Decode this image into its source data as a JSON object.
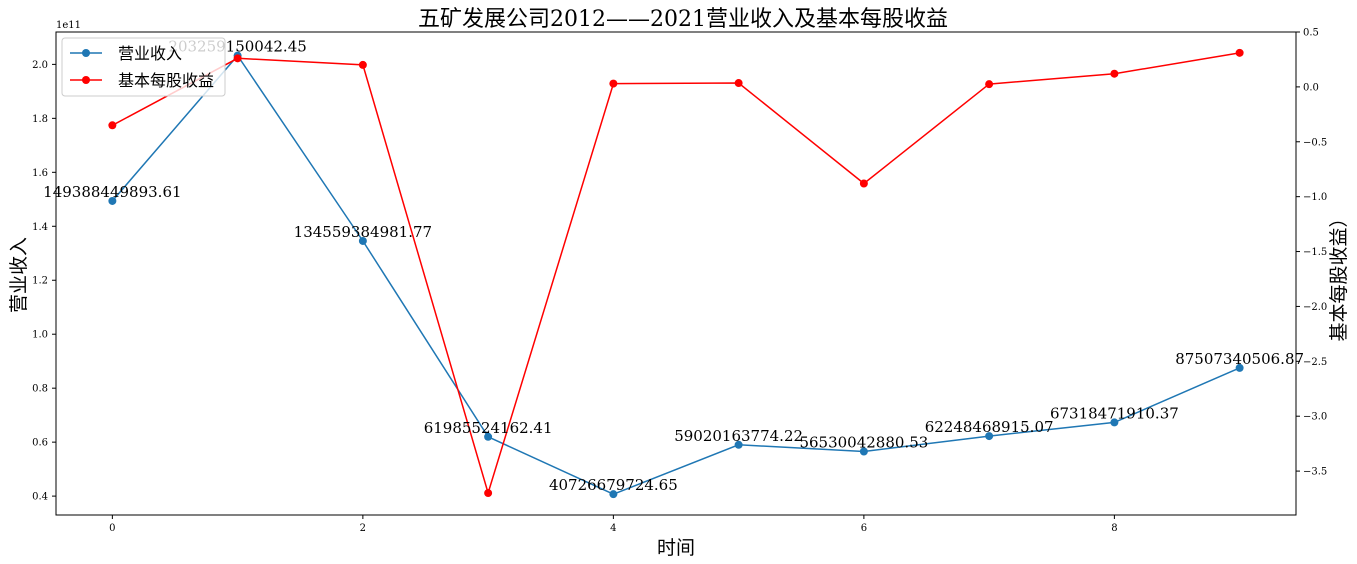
{
  "chart_data": {
    "type": "line",
    "title": "五矿发展公司2012——2021营业收入及基本每股收益",
    "xlabel": "时间",
    "ylabel_left": "营业收入",
    "ylabel_right": "基本每股收益）",
    "offset_label": "1e11",
    "x": [
      0,
      1,
      2,
      3,
      4,
      5,
      6,
      7,
      8,
      9
    ],
    "x_ticks": [
      "0",
      "2",
      "4",
      "6",
      "8"
    ],
    "y_left_ticks": [
      "0.4",
      "0.6",
      "0.8",
      "1.0",
      "1.2",
      "1.4",
      "1.6",
      "1.8",
      "2.0"
    ],
    "y_right_ticks": [
      "0.5",
      "0.0",
      "−0.5",
      "−1.0",
      "−1.5",
      "−2.0",
      "−2.5",
      "−3.0",
      "−3.5"
    ],
    "series": [
      {
        "name": "营业收入",
        "axis": "left",
        "color": "#1f77b4",
        "values": [
          149388449893.61,
          203259150042.45,
          134559384981.77,
          61985524162.41,
          40726679724.65,
          59020163774.22,
          56530042880.53,
          62248468915.07,
          67318471910.37,
          87507340506.87
        ],
        "labels": [
          "149388449893.61",
          "203259150042.45",
          "134559384981.77",
          "61985524162.41",
          "40726679724.65",
          "59020163774.22",
          "56530042880.53",
          "62248468915.07",
          "67318471910.37",
          "87507340506.87"
        ]
      },
      {
        "name": "基本每股收益",
        "axis": "right",
        "color": "#ff0000",
        "values": [
          -0.35,
          0.26,
          0.2,
          -3.7,
          0.03,
          0.035,
          -0.88,
          0.025,
          0.12,
          0.31
        ]
      }
    ],
    "y_left_range": [
      33000000000,
      212000000000
    ],
    "y_right_range": [
      -3.9,
      0.5
    ],
    "x_range": [
      -0.45,
      9.45
    ],
    "legend": "upper-left",
    "grid": false
  }
}
